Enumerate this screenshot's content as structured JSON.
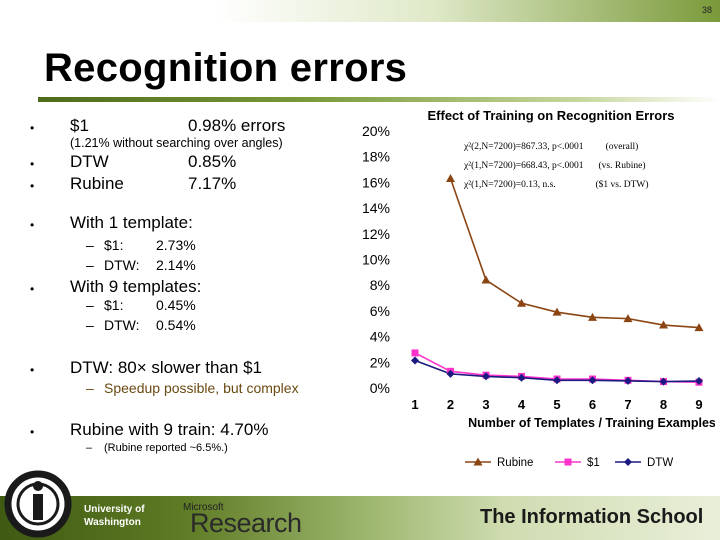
{
  "slide_number": "38",
  "title": "Recognition errors",
  "bullets": {
    "b1": {
      "label": "$1",
      "value": "0.98% errors",
      "note": "(1.21% without searching over angles)"
    },
    "b2": {
      "label": "DTW",
      "value": "0.85%"
    },
    "b3": {
      "label": "Rubine",
      "value": "7.17%"
    },
    "b4": {
      "label": "With 1 template:"
    },
    "b4_s1": {
      "label": "$1:",
      "value": "2.73%"
    },
    "b4_s2": {
      "label": "DTW:",
      "value": "2.14%"
    },
    "b5": {
      "label": "With 9 templates:"
    },
    "b5_s1": {
      "label": "$1:",
      "value": "0.45%"
    },
    "b5_s2": {
      "label": "DTW:",
      "value": "0.54%"
    },
    "b6": {
      "label": "DTW: 80× slower than $1"
    },
    "b6_s1": {
      "label": "Speedup possible, but complex"
    },
    "b7": {
      "label": "Rubine with 9 train: 4.70%"
    },
    "b7_s1": {
      "label": "(Rubine reported ~6.5%.)"
    },
    "bullet_char": "•",
    "dash_char": "–"
  },
  "chart_data": {
    "type": "line",
    "title": "Effect of Training on Recognition Errors",
    "xlabel": "Number of Templates / Training Examples",
    "ylabel": "",
    "categories": [
      1,
      2,
      3,
      4,
      5,
      6,
      7,
      8,
      9
    ],
    "y_ticks": [
      "0%",
      "2%",
      "4%",
      "6%",
      "8%",
      "10%",
      "12%",
      "14%",
      "16%",
      "18%",
      "20%"
    ],
    "ylim": [
      0,
      20
    ],
    "grid": false,
    "legend_position": "bottom",
    "series": [
      {
        "name": "Rubine",
        "color": "#8B4513",
        "marker": "triangle",
        "values": [
          null,
          16.3,
          8.4,
          6.6,
          5.9,
          5.5,
          5.4,
          4.9,
          4.7
        ]
      },
      {
        "name": "$1",
        "color": "#FF33CC",
        "marker": "square",
        "values": [
          2.73,
          1.3,
          1.0,
          0.9,
          0.7,
          0.7,
          0.6,
          0.5,
          0.45
        ]
      },
      {
        "name": "DTW",
        "color": "#1A1A80",
        "marker": "diamond",
        "values": [
          2.14,
          1.1,
          0.9,
          0.8,
          0.6,
          0.6,
          0.55,
          0.5,
          0.54
        ]
      }
    ],
    "annotations": [
      {
        "text": "χ²(2,N=7200)=867.33, p<.0001",
        "note": "(overall)"
      },
      {
        "text": "χ²(1,N=7200)=668.43, p<.0001",
        "note": "(vs. Rubine)"
      },
      {
        "text": "χ²(1,N=7200)=0.13, n.s.",
        "note": "($1 vs. DTW)"
      }
    ]
  },
  "footer": {
    "uw_line1": "University of",
    "uw_line2": "Washington",
    "ms_small": "Microsoft",
    "ms_big": "Research",
    "ischool": "The Information School"
  }
}
